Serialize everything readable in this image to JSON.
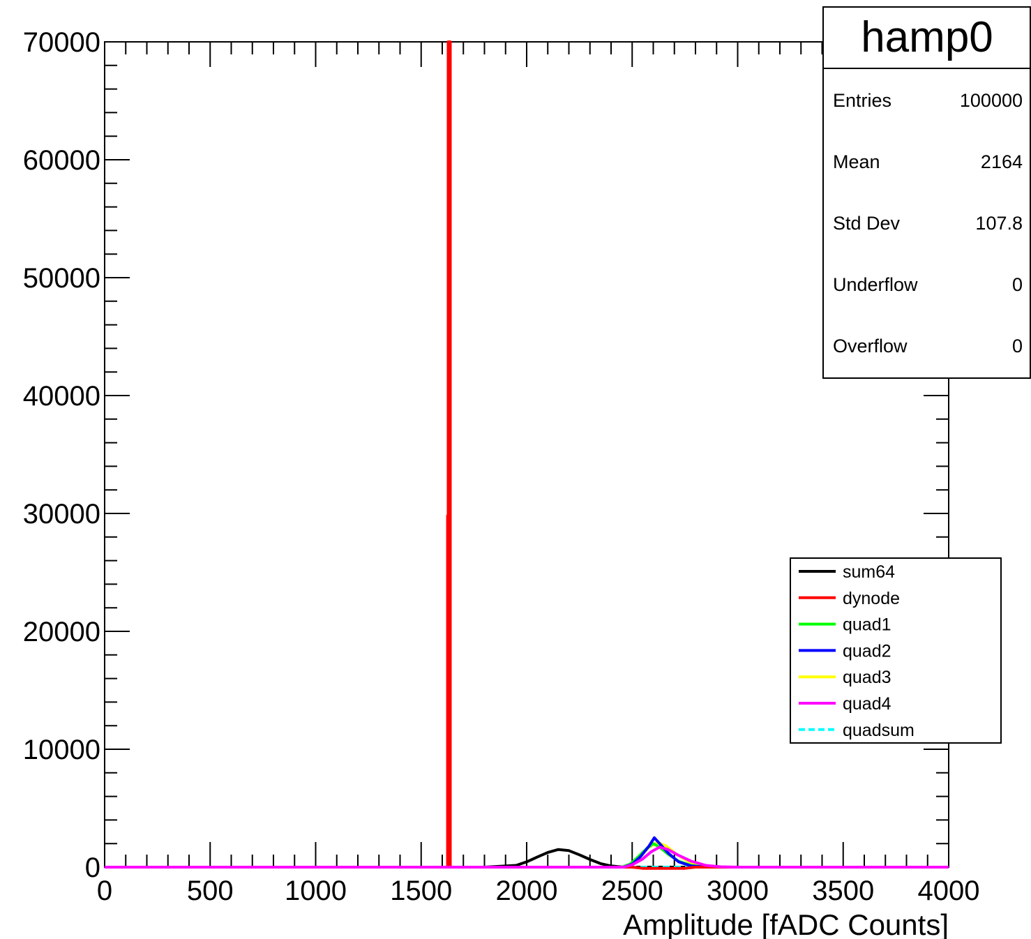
{
  "chart_data": {
    "type": "line",
    "title": "",
    "xlabel": "Amplitude [fADC Counts]",
    "ylabel": "",
    "xlim": [
      0,
      4000
    ],
    "ylim": [
      0,
      70000
    ],
    "x_ticks": [
      "0",
      "500",
      "1000",
      "1500",
      "2000",
      "2500",
      "3000",
      "3500",
      "4000"
    ],
    "y_ticks": [
      "0",
      "10000",
      "20000",
      "30000",
      "40000",
      "50000",
      "60000",
      "70000"
    ],
    "grid": false,
    "legend_position": "right",
    "series": [
      {
        "name": "sum64",
        "color": "#000000",
        "dashed": false,
        "width": 4,
        "points": [
          [
            0,
            0
          ],
          [
            1800,
            0
          ],
          [
            1950,
            150
          ],
          [
            2000,
            450
          ],
          [
            2050,
            850
          ],
          [
            2100,
            1250
          ],
          [
            2150,
            1500
          ],
          [
            2200,
            1400
          ],
          [
            2250,
            1050
          ],
          [
            2300,
            650
          ],
          [
            2350,
            300
          ],
          [
            2400,
            100
          ],
          [
            2450,
            20
          ],
          [
            2500,
            0
          ],
          [
            4000,
            0
          ]
        ]
      },
      {
        "name": "dynode",
        "color": "#ff0000",
        "dashed": false,
        "width": 4,
        "points": [
          [
            0,
            0
          ],
          [
            1625,
            0
          ],
          [
            1625,
            29800
          ],
          [
            1628,
            29800
          ],
          [
            1628,
            70000
          ],
          [
            1638,
            70000
          ],
          [
            1638,
            0
          ],
          [
            2500,
            0
          ],
          [
            2550,
            -100
          ],
          [
            2750,
            -100
          ],
          [
            2800,
            0
          ],
          [
            4000,
            0
          ]
        ]
      },
      {
        "name": "quad1",
        "color": "#00ff00",
        "dashed": false,
        "width": 4,
        "points": [
          [
            0,
            0
          ],
          [
            2450,
            0
          ],
          [
            2490,
            250
          ],
          [
            2530,
            900
          ],
          [
            2570,
            1600
          ],
          [
            2600,
            2000
          ],
          [
            2630,
            1700
          ],
          [
            2670,
            1100
          ],
          [
            2720,
            500
          ],
          [
            2780,
            150
          ],
          [
            2850,
            0
          ],
          [
            4000,
            0
          ]
        ]
      },
      {
        "name": "quad2",
        "color": "#0000ff",
        "dashed": false,
        "width": 4,
        "points": [
          [
            0,
            0
          ],
          [
            2460,
            0
          ],
          [
            2500,
            250
          ],
          [
            2540,
            900
          ],
          [
            2580,
            1800
          ],
          [
            2605,
            2500
          ],
          [
            2630,
            2000
          ],
          [
            2670,
            1200
          ],
          [
            2720,
            450
          ],
          [
            2780,
            100
          ],
          [
            2850,
            0
          ],
          [
            4000,
            0
          ]
        ]
      },
      {
        "name": "quad3",
        "color": "#ffff00",
        "dashed": false,
        "width": 4,
        "points": [
          [
            0,
            0
          ],
          [
            2450,
            0
          ],
          [
            2490,
            200
          ],
          [
            2530,
            800
          ],
          [
            2580,
            1700
          ],
          [
            2620,
            2100
          ],
          [
            2660,
            1800
          ],
          [
            2710,
            1100
          ],
          [
            2770,
            450
          ],
          [
            2840,
            100
          ],
          [
            2900,
            0
          ],
          [
            4000,
            0
          ]
        ]
      },
      {
        "name": "quad4",
        "color": "#ff00ff",
        "dashed": false,
        "width": 4,
        "points": [
          [
            0,
            0
          ],
          [
            2460,
            0
          ],
          [
            2500,
            200
          ],
          [
            2550,
            700
          ],
          [
            2590,
            1300
          ],
          [
            2630,
            1700
          ],
          [
            2670,
            1500
          ],
          [
            2720,
            1000
          ],
          [
            2780,
            500
          ],
          [
            2850,
            150
          ],
          [
            2920,
            30
          ],
          [
            3000,
            0
          ],
          [
            4000,
            0
          ]
        ]
      },
      {
        "name": "quadsum",
        "color": "#00ffff",
        "dashed": true,
        "width": 4,
        "points": [
          [
            0,
            0
          ],
          [
            4000,
            0
          ]
        ]
      }
    ]
  },
  "stats_box": {
    "title": "hamp0",
    "rows": [
      {
        "label": "Entries",
        "value": "100000"
      },
      {
        "label": "Mean",
        "value": "2164"
      },
      {
        "label": "Std Dev",
        "value": "107.8"
      },
      {
        "label": "Underflow",
        "value": "0"
      },
      {
        "label": "Overflow",
        "value": "0"
      }
    ]
  }
}
